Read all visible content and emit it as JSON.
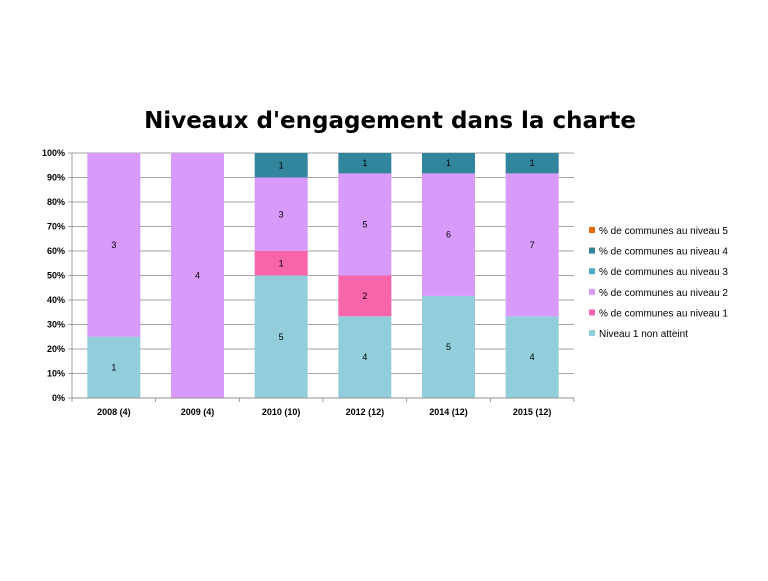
{
  "chart_data": {
    "type": "bar",
    "stacked": "percent",
    "title": "Niveaux d'engagement dans la charte",
    "categories": [
      "2008 (4)",
      "2009 (4)",
      "2010 (10)",
      "2012 (12)",
      "2014 (12)",
      "2015 (12)"
    ],
    "ylim": [
      0,
      100
    ],
    "yticks": [
      "0%",
      "10%",
      "20%",
      "30%",
      "40%",
      "50%",
      "60%",
      "70%",
      "80%",
      "90%",
      "100%"
    ],
    "grid": true,
    "legend_position": "right",
    "series": [
      {
        "name": "Niveau 1 non atteint",
        "color": "#92CDDC",
        "values": [
          1,
          0,
          5,
          4,
          5,
          4
        ]
      },
      {
        "name": "% de communes au niveau 1",
        "color": "#F865A8",
        "values": [
          0,
          0,
          1,
          2,
          0,
          0
        ]
      },
      {
        "name": "% de communes au niveau 2",
        "color": "#D99BFB",
        "values": [
          3,
          4,
          3,
          5,
          6,
          7
        ]
      },
      {
        "name": "% de communes au niveau 3",
        "color": "#4BACC6",
        "values": [
          0,
          0,
          0,
          0,
          0,
          0
        ]
      },
      {
        "name": "% de communes au niveau 4",
        "color": "#31859C",
        "values": [
          0,
          0,
          1,
          1,
          1,
          1
        ]
      },
      {
        "name": "% de communes au niveau 5",
        "color": "#E46C0A",
        "values": [
          0,
          0,
          0,
          0,
          0,
          0
        ]
      }
    ]
  }
}
